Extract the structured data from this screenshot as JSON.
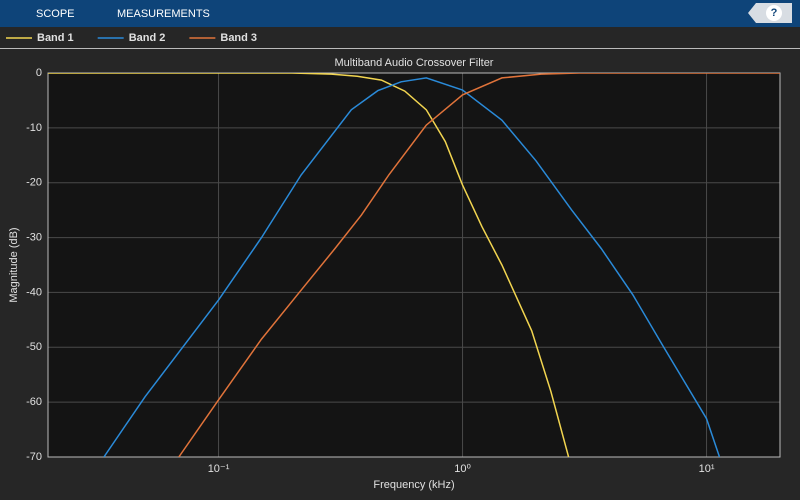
{
  "toolbar": {
    "tabs": [
      "SCOPE",
      "MEASUREMENTS"
    ],
    "help": "?"
  },
  "chart_data": {
    "type": "line",
    "title": "Multiband Audio Crossover Filter",
    "x_label": "Frequency (kHz)",
    "y_label": "Magnitude (dB)",
    "xscale": "log",
    "xlim": [
      0.02,
      20
    ],
    "ylim": [
      -70,
      0
    ],
    "xticks": [
      {
        "value": 0.1,
        "label": "10⁻¹"
      },
      {
        "value": 1,
        "label": "10⁰"
      },
      {
        "value": 10,
        "label": "10¹"
      }
    ],
    "yticks": [
      0,
      -10,
      -20,
      -30,
      -40,
      -50,
      -60,
      -70
    ],
    "grid": true,
    "legend": "top",
    "series": [
      {
        "name": "Band 1",
        "color": "#f2d550",
        "x": [
          0.02,
          0.1,
          0.2,
          0.29,
          0.37,
          0.465,
          0.58,
          0.71,
          0.85,
          1.0,
          1.2,
          1.45,
          1.92,
          2.3,
          2.72
        ],
        "values": [
          0,
          0,
          0,
          -0.2,
          -0.6,
          -1.3,
          -3.3,
          -6.7,
          -12.5,
          -20.4,
          -28,
          -35,
          -47,
          -58,
          -70
        ]
      },
      {
        "name": "Band 2",
        "color": "#2a8ad8",
        "x": [
          0.0339,
          0.05,
          0.1,
          0.15,
          0.218,
          0.35,
          0.45,
          0.56,
          0.71,
          1.0,
          1.45,
          2.0,
          2.8,
          3.7,
          5.0,
          6.6,
          10,
          11.3
        ],
        "values": [
          -70,
          -59,
          -41.4,
          -30,
          -18.6,
          -6.7,
          -3.2,
          -1.6,
          -0.9,
          -3.1,
          -8.6,
          -16,
          -25,
          -32,
          -40.5,
          -49.6,
          -63,
          -70
        ]
      },
      {
        "name": "Band 3",
        "color": "#e0733a",
        "x": [
          0.0687,
          0.1,
          0.15,
          0.218,
          0.3,
          0.385,
          0.5,
          0.71,
          1.0,
          1.45,
          2.1,
          3.0,
          5.0,
          20
        ],
        "values": [
          -70,
          -59.6,
          -48.5,
          -39.6,
          -32,
          -25.9,
          -18.5,
          -9.5,
          -4,
          -0.9,
          -0.2,
          0,
          0,
          0
        ]
      }
    ]
  }
}
